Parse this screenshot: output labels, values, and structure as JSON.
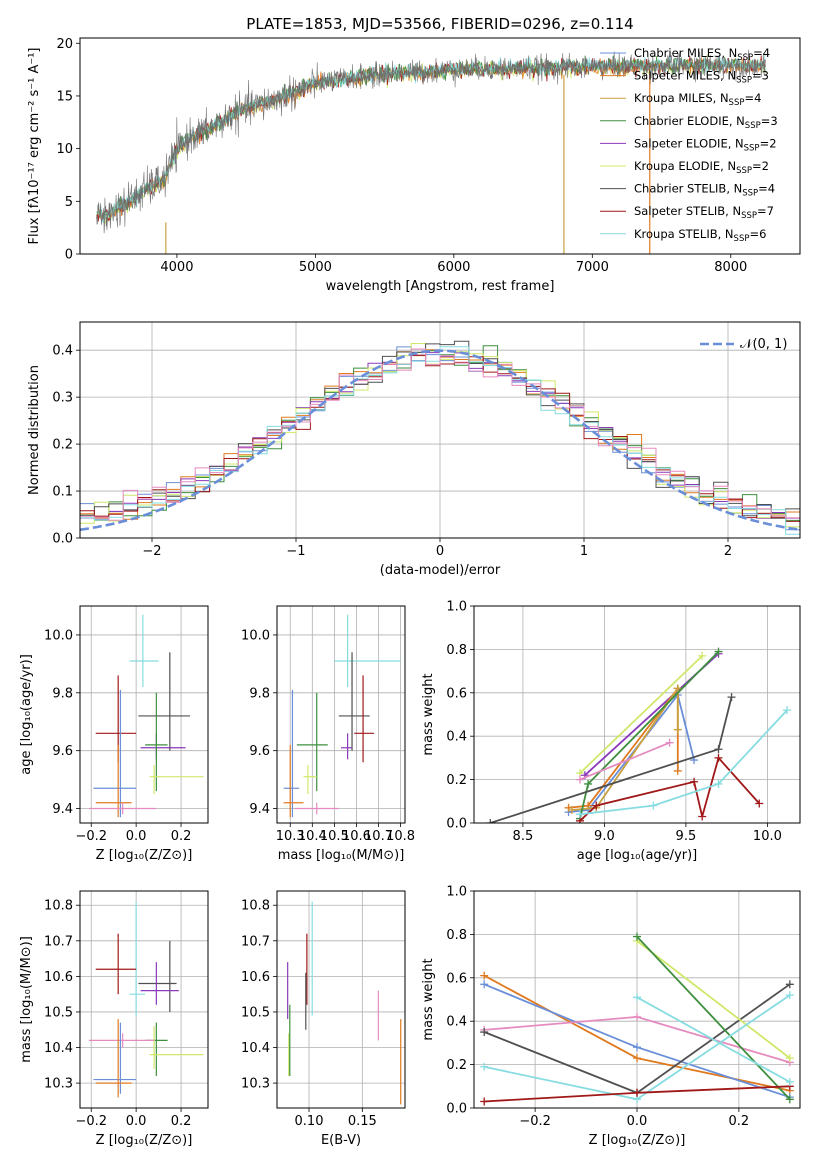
{
  "title": "PLATE=1853, MJD=53566, FIBERID=0296, z=0.114",
  "colors": {
    "Chabrier MILES": "#6a8fd8",
    "Salpeter MILES": "#e07a1f",
    "Kroupa MILES": "#c8a040",
    "Chabrier ELODIE": "#3f8f3f",
    "Salpeter ELODIE": "#8a3ab9",
    "Kroupa ELODIE": "#cfe86a",
    "Chabrier STELIB": "#505050",
    "Salpeter STELIB": "#a01818",
    "Kroupa STELIB": "#86dce0",
    "pink": "#e58bc0",
    "gauss": "#6a8fd8"
  },
  "chart_data": [
    {
      "type": "line",
      "title": "PLATE=1853, MJD=53566, FIBERID=0296, z=0.114",
      "xlabel": "wavelength [Angstrom, rest frame]",
      "ylabel": "Flux [fλ10⁻¹⁷ erg cm⁻² s⁻¹ A⁻¹]",
      "xlim": [
        3300,
        8500
      ],
      "ylim": [
        0,
        20.5
      ],
      "xticks": [
        "4000",
        "5000",
        "6000",
        "7000",
        "8000"
      ],
      "yticks": [
        "0",
        "5",
        "10",
        "15",
        "20"
      ],
      "legend_position": "top-right",
      "legend": [
        {
          "label": "Chabrier MILES, N",
          "sub": "SSP",
          "suffix": "=4"
        },
        {
          "label": "Salpeter MILES, N",
          "sub": "SSP",
          "suffix": "=3"
        },
        {
          "label": "Kroupa MILES, N",
          "sub": "SSP",
          "suffix": "=4"
        },
        {
          "label": "Chabrier ELODIE, N",
          "sub": "SSP",
          "suffix": "=3"
        },
        {
          "label": "Salpeter ELODIE, N",
          "sub": "SSP",
          "suffix": "=2"
        },
        {
          "label": "Kroupa ELODIE, N",
          "sub": "SSP",
          "suffix": "=2"
        },
        {
          "label": "Chabrier STELIB, N",
          "sub": "SSP",
          "suffix": "=4"
        },
        {
          "label": "Salpeter STELIB, N",
          "sub": "SSP",
          "suffix": "=7"
        },
        {
          "label": "Kroupa STELIB, N",
          "sub": "SSP",
          "suffix": "=6"
        }
      ],
      "continuum": {
        "x": [
          3420,
          3500,
          3600,
          3700,
          3800,
          3900,
          4000,
          4100,
          4200,
          4300,
          4400,
          4500,
          4600,
          4700,
          4800,
          4900,
          5000,
          5200,
          5400,
          5600,
          5800,
          6000,
          6200,
          6400,
          6600,
          6800,
          7000,
          7200,
          7400,
          7600,
          7800,
          8000,
          8200,
          8250
        ],
        "y": [
          3.8,
          3.6,
          4.6,
          5.4,
          6.3,
          7.0,
          9.8,
          11.2,
          11.6,
          12.4,
          13.2,
          13.8,
          14.2,
          14.6,
          15.2,
          15.6,
          16.2,
          16.6,
          16.9,
          17.2,
          17.3,
          17.5,
          17.6,
          17.6,
          17.7,
          17.7,
          17.8,
          17.8,
          17.8,
          17.8,
          17.9,
          17.9,
          17.9,
          17.9
        ]
      },
      "spikes": [
        {
          "x": 3920,
          "y": [
            -0.5,
            3.0
          ],
          "series": "Kroupa MILES"
        },
        {
          "x": 6795,
          "y": [
            0,
            17.0
          ],
          "series": "Kroupa MILES"
        },
        {
          "x": 7415,
          "y": [
            0,
            17.5
          ],
          "series": "Salpeter MILES"
        }
      ]
    },
    {
      "type": "line",
      "xlabel": "(data-model)/error",
      "ylabel": "Normed distribution",
      "xlim": [
        -2.5,
        2.5
      ],
      "ylim": [
        0,
        0.46
      ],
      "xticks": [
        "−2",
        "−1",
        "0",
        "1",
        "2"
      ],
      "yticks": [
        "0.0",
        "0.1",
        "0.2",
        "0.3",
        "0.4"
      ],
      "grid": true,
      "legend_position": "top-right",
      "legend": "𝒩(0, 1)",
      "bin_width": 0.1,
      "series": [
        {
          "name": "Chabrier MILES",
          "mean": 0.0,
          "sigma": 1.07,
          "jitter": 0.013
        },
        {
          "name": "Salpeter MILES",
          "mean": -0.02,
          "sigma": 1.05,
          "jitter": 0.014
        },
        {
          "name": "Chabrier ELODIE",
          "mean": 0.02,
          "sigma": 1.06,
          "jitter": 0.015
        },
        {
          "name": "Salpeter ELODIE",
          "mean": 0.0,
          "sigma": 1.08,
          "jitter": 0.013
        },
        {
          "name": "Kroupa ELODIE",
          "mean": 0.03,
          "sigma": 1.04,
          "jitter": 0.016
        },
        {
          "name": "Chabrier STELIB",
          "mean": -0.01,
          "sigma": 1.06,
          "jitter": 0.018
        },
        {
          "name": "Salpeter STELIB",
          "mean": 0.01,
          "sigma": 1.07,
          "jitter": 0.012
        },
        {
          "name": "Kroupa STELIB",
          "mean": 0.0,
          "sigma": 1.05,
          "jitter": 0.015
        },
        {
          "name": "pink",
          "mean": 0.0,
          "sigma": 1.1,
          "jitter": 0.012
        }
      ]
    },
    {
      "type": "scatter",
      "xlabel": "Z [log₁₀(Z/Z⊙)]",
      "ylabel": "age  [log₁₀(age/yr)]",
      "xlim": [
        -0.25,
        0.32
      ],
      "ylim": [
        9.35,
        10.1
      ],
      "xticks": [
        "−0.2",
        "0.0",
        "0.2"
      ],
      "yticks": [
        "9.4",
        "9.6",
        "9.8",
        "10.0"
      ],
      "grid": true,
      "crosses": [
        {
          "series": "Kroupa STELIB",
          "x": 0.03,
          "xerr": [
            0.06,
            0.07
          ],
          "y": 9.91,
          "yerr": [
            0.09,
            0.16
          ]
        },
        {
          "series": "Chabrier STELIB",
          "x": 0.15,
          "xerr": [
            0.14,
            0.09
          ],
          "y": 9.72,
          "yerr": [
            0.12,
            0.22
          ]
        },
        {
          "series": "Salpeter STELIB",
          "x": -0.08,
          "xerr": [
            0.1,
            0.08
          ],
          "y": 9.66,
          "yerr": [
            0.1,
            0.2
          ]
        },
        {
          "series": "Salpeter ELODIE",
          "x": 0.09,
          "xerr": [
            0.07,
            0.13
          ],
          "y": 9.61,
          "yerr": [
            0.04,
            0.05
          ]
        },
        {
          "series": "Chabrier ELODIE",
          "x": 0.09,
          "xerr": [
            0.05,
            0.05
          ],
          "y": 9.62,
          "yerr": [
            0.16,
            0.18
          ]
        },
        {
          "series": "Kroupa ELODIE",
          "x": 0.08,
          "xerr": [
            0.02,
            0.22
          ],
          "y": 9.51,
          "yerr": [
            0.06,
            0.04
          ]
        },
        {
          "series": "Chabrier MILES",
          "x": -0.07,
          "xerr": [
            0.12,
            0.07
          ],
          "y": 9.47,
          "yerr": [
            0.1,
            0.34
          ]
        },
        {
          "series": "Salpeter MILES",
          "x": -0.08,
          "xerr": [
            0.1,
            0.06
          ],
          "y": 9.42,
          "yerr": [
            0.05,
            0.2
          ]
        },
        {
          "series": "pink",
          "x": -0.06,
          "xerr": [
            0.15,
            0.15
          ],
          "y": 9.4,
          "yerr": [
            0.02,
            0.02
          ]
        }
      ]
    },
    {
      "type": "scatter",
      "xlabel": "mass [log₁₀(M/M⊙)]",
      "xlim": [
        10.24,
        10.82
      ],
      "ylim": [
        9.35,
        10.1
      ],
      "xticks": [
        "10.3",
        "10.4",
        "10.5",
        "10.6",
        "10.7",
        "10.8"
      ],
      "yticks": [
        "9.4",
        "9.6",
        "9.8",
        "10.0"
      ],
      "grid": true,
      "crosses": [
        {
          "series": "Kroupa STELIB",
          "x": 10.56,
          "xerr": [
            0.06,
            0.24
          ],
          "y": 9.91,
          "yerr": [
            0.09,
            0.16
          ]
        },
        {
          "series": "Chabrier STELIB",
          "x": 10.58,
          "xerr": [
            0.06,
            0.08
          ],
          "y": 9.72,
          "yerr": [
            0.12,
            0.22
          ]
        },
        {
          "series": "Salpeter STELIB",
          "x": 10.63,
          "xerr": [
            0.04,
            0.05
          ],
          "y": 9.66,
          "yerr": [
            0.1,
            0.2
          ]
        },
        {
          "series": "Salpeter ELODIE",
          "x": 10.56,
          "xerr": [
            0.03,
            0.02
          ],
          "y": 9.61,
          "yerr": [
            0.04,
            0.05
          ]
        },
        {
          "series": "Chabrier ELODIE",
          "x": 10.42,
          "xerr": [
            0.09,
            0.05
          ],
          "y": 9.62,
          "yerr": [
            0.16,
            0.18
          ]
        },
        {
          "series": "Kroupa ELODIE",
          "x": 10.38,
          "xerr": [
            0.02,
            0.04
          ],
          "y": 9.51,
          "yerr": [
            0.06,
            0.04
          ]
        },
        {
          "series": "Chabrier MILES",
          "x": 10.31,
          "xerr": [
            0.04,
            0.03
          ],
          "y": 9.47,
          "yerr": [
            0.1,
            0.34
          ]
        },
        {
          "series": "Salpeter MILES",
          "x": 10.3,
          "xerr": [
            0.03,
            0.06
          ],
          "y": 9.42,
          "yerr": [
            0.05,
            0.2
          ]
        },
        {
          "series": "pink",
          "x": 10.42,
          "xerr": [
            0.1,
            0.1
          ],
          "y": 9.4,
          "yerr": [
            0.02,
            0.02
          ]
        }
      ]
    },
    {
      "type": "line",
      "xlabel": "age  [log₁₀(age/yr)]",
      "ylabel": "mass weight",
      "xlim": [
        8.2,
        10.2
      ],
      "ylim": [
        0,
        1.0
      ],
      "xticks": [
        "8.5",
        "9.0",
        "9.5",
        "10.0"
      ],
      "yticks": [
        "0.0",
        "0.2",
        "0.4",
        "0.6",
        "0.8",
        "1.0"
      ],
      "grid": true,
      "series": [
        {
          "name": "Kroupa ELODIE",
          "x": [
            8.85,
            9.6
          ],
          "y": [
            0.23,
            0.77
          ]
        },
        {
          "name": "Salpeter ELODIE",
          "x": [
            8.88,
            9.7
          ],
          "y": [
            0.22,
            0.78
          ]
        },
        {
          "name": "Chabrier MILES",
          "x": [
            8.78,
            8.9,
            9.45,
            9.55
          ],
          "y": [
            0.05,
            0.06,
            0.59,
            0.29
          ]
        },
        {
          "name": "Salpeter MILES",
          "x": [
            8.78,
            8.9,
            9.45,
            9.45
          ],
          "y": [
            0.07,
            0.08,
            0.62,
            0.24
          ]
        },
        {
          "name": "Kroupa MILES",
          "x": [
            8.8,
            8.95,
            9.45,
            9.45
          ],
          "y": [
            0.06,
            0.07,
            0.62,
            0.43
          ]
        },
        {
          "name": "Chabrier ELODIE",
          "x": [
            8.85,
            8.9,
            9.7
          ],
          "y": [
            0.02,
            0.18,
            0.79
          ]
        },
        {
          "name": "pink",
          "x": [
            8.85,
            9.4
          ],
          "y": [
            0.2,
            0.37
          ]
        },
        {
          "name": "Chabrier STELIB",
          "x": [
            8.3,
            9.7,
            9.78
          ],
          "y": [
            0.0,
            0.34,
            0.58
          ]
        },
        {
          "name": "Salpeter STELIB",
          "x": [
            8.85,
            8.95,
            9.55,
            9.6,
            9.7,
            9.95
          ],
          "y": [
            0.01,
            0.08,
            0.19,
            0.03,
            0.3,
            0.09
          ]
        },
        {
          "name": "Kroupa STELIB",
          "x": [
            8.85,
            9.3,
            9.7,
            10.12
          ],
          "y": [
            0.04,
            0.08,
            0.18,
            0.52
          ]
        }
      ]
    },
    {
      "type": "scatter",
      "xlabel": "Z [log₁₀(Z/Z⊙)]",
      "ylabel": "mass [log₁₀(M/M⊙)]",
      "xlim": [
        -0.25,
        0.32
      ],
      "ylim": [
        10.23,
        10.84
      ],
      "xticks": [
        "−0.2",
        "0.0",
        "0.2"
      ],
      "yticks": [
        "10.3",
        "10.4",
        "10.5",
        "10.6",
        "10.7",
        "10.8"
      ],
      "grid": true,
      "crosses": [
        {
          "series": "Kroupa STELIB",
          "x": 0.0,
          "xerr": [
            0.03,
            0.04
          ],
          "y": 10.55,
          "yerr": [
            0.06,
            0.26
          ]
        },
        {
          "series": "Salpeter STELIB",
          "x": -0.08,
          "xerr": [
            0.1,
            0.08
          ],
          "y": 10.62,
          "yerr": [
            0.07,
            0.1
          ]
        },
        {
          "series": "Chabrier STELIB",
          "x": 0.15,
          "xerr": [
            0.14,
            0.03
          ],
          "y": 10.58,
          "yerr": [
            0.08,
            0.12
          ]
        },
        {
          "series": "Salpeter ELODIE",
          "x": 0.09,
          "xerr": [
            0.07,
            0.1
          ],
          "y": 10.56,
          "yerr": [
            0.04,
            0.08
          ]
        },
        {
          "series": "Chabrier ELODIE",
          "x": 0.09,
          "xerr": [
            0.05,
            0.05
          ],
          "y": 10.42,
          "yerr": [
            0.1,
            0.05
          ]
        },
        {
          "series": "Kroupa ELODIE",
          "x": 0.08,
          "xerr": [
            0.02,
            0.22
          ],
          "y": 10.38,
          "yerr": [
            0.04,
            0.08
          ]
        },
        {
          "series": "pink",
          "x": -0.06,
          "xerr": [
            0.15,
            0.14
          ],
          "y": 10.42,
          "yerr": [
            0.02,
            0.02
          ]
        },
        {
          "series": "Chabrier MILES",
          "x": -0.07,
          "xerr": [
            0.12,
            0.07
          ],
          "y": 10.31,
          "yerr": [
            0.04,
            0.16
          ]
        },
        {
          "series": "Salpeter MILES",
          "x": -0.08,
          "xerr": [
            0.1,
            0.06
          ],
          "y": 10.3,
          "yerr": [
            0.04,
            0.18
          ]
        }
      ]
    },
    {
      "type": "scatter",
      "xlabel": "E(B-V)",
      "xlim": [
        0.07,
        0.19
      ],
      "ylim": [
        10.23,
        10.84
      ],
      "xticks": [
        "0.10",
        "0.15"
      ],
      "yticks": [
        "10.3",
        "10.4",
        "10.5",
        "10.6",
        "10.7",
        "10.8"
      ],
      "grid": true,
      "crosses": [
        {
          "series": "Kroupa STELIB",
          "x": 0.103,
          "y": 10.65,
          "yerr": [
            0.16,
            0.16
          ]
        },
        {
          "series": "Salpeter STELIB",
          "x": 0.098,
          "y": 10.62,
          "yerr": [
            0.1,
            0.1
          ]
        },
        {
          "series": "Chabrier STELIB",
          "x": 0.097,
          "y": 10.53,
          "yerr": [
            0.08,
            0.08
          ]
        },
        {
          "series": "Salpeter ELODIE",
          "x": 0.08,
          "y": 10.56,
          "yerr": [
            0.08,
            0.08
          ]
        },
        {
          "series": "Kroupa ELODIE",
          "x": 0.081,
          "y": 10.38,
          "yerr": [
            0.06,
            0.06
          ]
        },
        {
          "series": "Chabrier ELODIE",
          "x": 0.082,
          "y": 10.42,
          "yerr": [
            0.1,
            0.1
          ]
        },
        {
          "series": "pink",
          "x": 0.165,
          "y": 10.49,
          "yerr": [
            0.07,
            0.07
          ]
        },
        {
          "series": "Salpeter MILES",
          "x": 0.186,
          "y": 10.36,
          "yerr": [
            0.12,
            0.12
          ]
        }
      ]
    },
    {
      "type": "line",
      "xlabel": "Z [log₁₀(Z/Z⊙)]",
      "ylabel": "mass weight",
      "xlim": [
        -0.32,
        0.32
      ],
      "ylim": [
        0,
        1.0
      ],
      "xticks": [
        "−0.2",
        "0.0",
        "0.2"
      ],
      "yticks": [
        "0.0",
        "0.2",
        "0.4",
        "0.6",
        "0.8",
        "1.0"
      ],
      "grid": true,
      "series": [
        {
          "name": "Salpeter MILES",
          "x": [
            -0.3,
            0.0,
            0.3
          ],
          "y": [
            0.61,
            0.23,
            0.08
          ]
        },
        {
          "name": "Chabrier MILES",
          "x": [
            -0.3,
            0.0,
            0.3
          ],
          "y": [
            0.57,
            0.28,
            0.05
          ]
        },
        {
          "name": "pink",
          "x": [
            -0.3,
            0.0,
            0.3
          ],
          "y": [
            0.36,
            0.42,
            0.21
          ]
        },
        {
          "name": "Chabrier STELIB",
          "x": [
            -0.3,
            0.0,
            0.3
          ],
          "y": [
            0.35,
            0.07,
            0.57
          ]
        },
        {
          "name": "Kroupa ELODIE",
          "x": [
            0.0,
            0.3
          ],
          "y": [
            0.77,
            0.23
          ]
        },
        {
          "name": "Chabrier ELODIE",
          "x": [
            0.0,
            0.3
          ],
          "y": [
            0.79,
            0.04
          ]
        },
        {
          "name": "Kroupa STELIB",
          "x": [
            -0.3,
            0.0,
            0.3
          ],
          "y": [
            0.19,
            0.04,
            0.52
          ]
        },
        {
          "name": "Salpeter STELIB",
          "x": [
            -0.3,
            0.0,
            0.3
          ],
          "y": [
            0.03,
            0.07,
            0.1
          ]
        },
        {
          "name": "Kroupa STELIB",
          "x": [
            0.0,
            0.3
          ],
          "y": [
            0.51,
            0.12
          ]
        }
      ]
    }
  ]
}
